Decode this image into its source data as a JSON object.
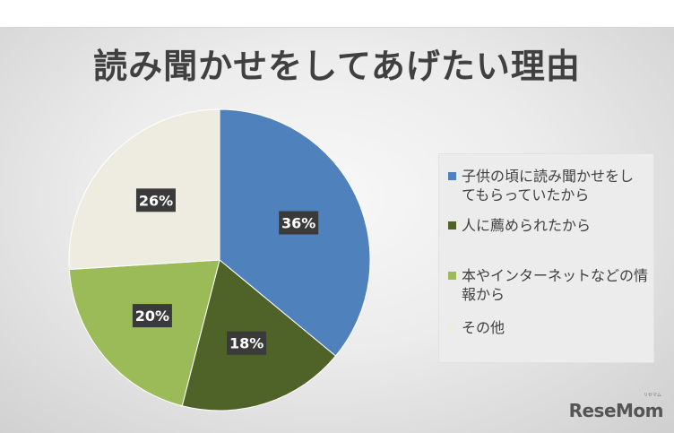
{
  "chart_data": {
    "type": "pie",
    "title": "読み聞かせをしてあげたい理由",
    "categories": [
      "子供の頃に読み聞かせをしてもらっていたから",
      "人に薦められたから",
      "本やインターネットなどの情報から",
      "その他"
    ],
    "values": [
      36,
      18,
      20,
      26
    ],
    "labels": [
      "36%",
      "18%",
      "20%",
      "26%"
    ],
    "colors": [
      "#4f81bd",
      "#4f6228",
      "#9bbb59",
      "#eeece1"
    ],
    "legend_position": "right"
  },
  "legend": {
    "lines": [
      [
        "子供の頃に読み聞かせをし",
        "てもらっていたから"
      ],
      [
        "人に薦められたから"
      ],
      [
        "本やインターネットなどの情",
        "報から"
      ],
      [
        "その他"
      ]
    ]
  },
  "brand": {
    "logo": "ReseMom",
    "small": "リセマム"
  }
}
